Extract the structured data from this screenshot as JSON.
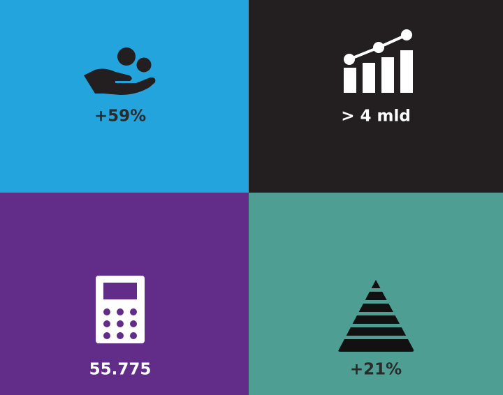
{
  "tiles": [
    {
      "label": "+59%"
    },
    {
      "label": "> 4 mld"
    },
    {
      "label": "55.775"
    },
    {
      "label": "+21%"
    }
  ]
}
